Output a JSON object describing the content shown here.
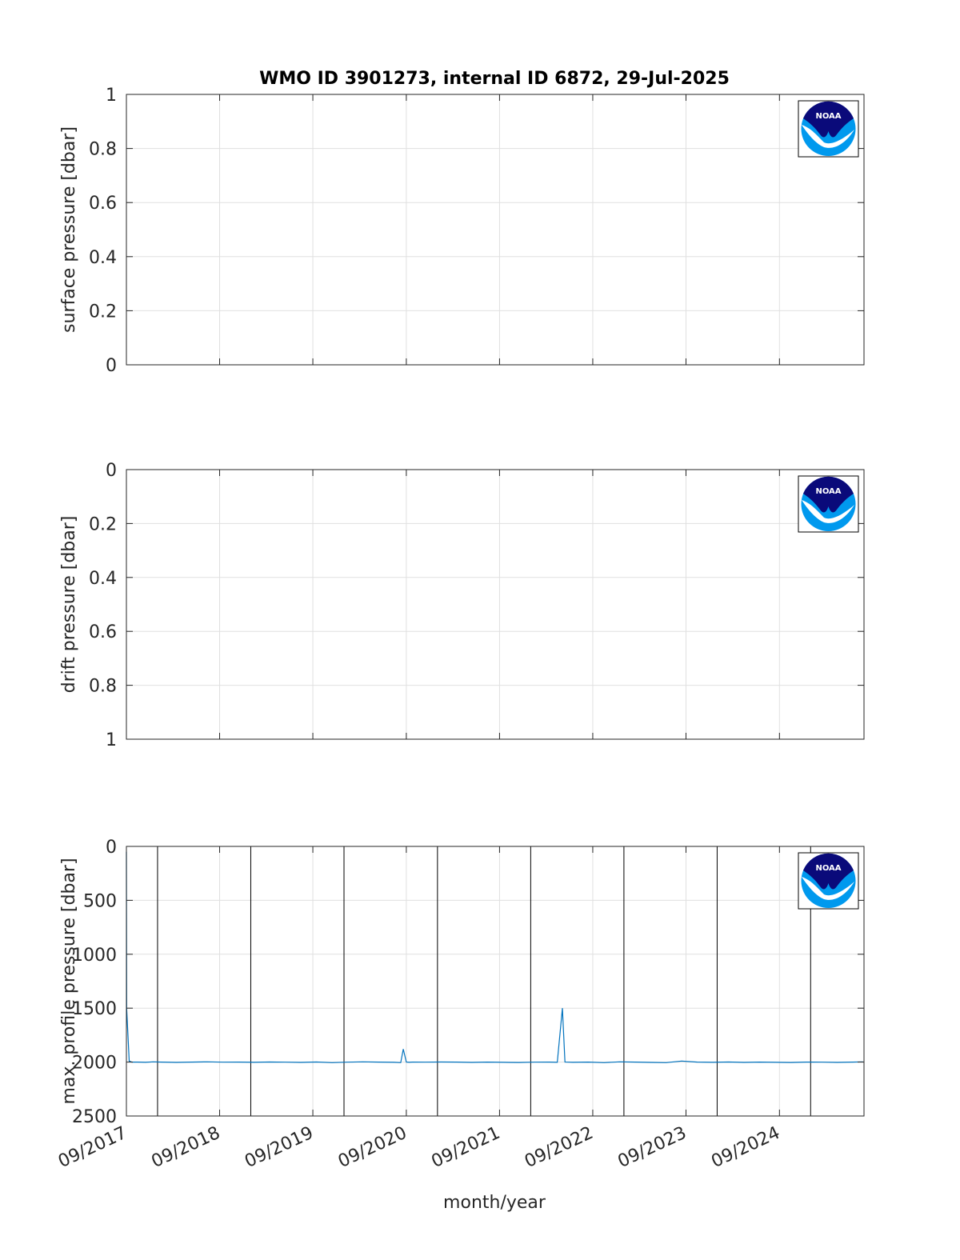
{
  "figure": {
    "title": "WMO ID 3901273, internal ID 6872, 29-Jul-2025",
    "xlabel": "month/year"
  },
  "logo": {
    "text": "NOAA",
    "icon": "noaa-logo-icon",
    "colors": {
      "navy": "#0a0a7a",
      "sky": "#0099ee",
      "white": "#ffffff"
    }
  },
  "colors": {
    "series": "#0072bd",
    "boundary": "#000000",
    "grid": "#e0e0e0",
    "axis": "#262626"
  },
  "chart_data": [
    {
      "type": "line",
      "ylabel": "surface pressure [dbar]",
      "ylim": [
        0,
        1
      ],
      "y_reversed": false,
      "yticks": [
        "0",
        "0.2",
        "0.4",
        "0.6",
        "0.8",
        "1"
      ],
      "ytick_values": [
        0,
        0.2,
        0.4,
        0.6,
        0.8,
        1
      ],
      "xlim": [
        "2017-09-01",
        "2025-07-29"
      ],
      "xticks": [
        "09/2017",
        "09/2018",
        "09/2019",
        "09/2020",
        "09/2021",
        "09/2022",
        "09/2023",
        "09/2024"
      ],
      "xtick_dates": [
        "2017-09-01",
        "2018-09-01",
        "2019-09-01",
        "2020-09-01",
        "2021-09-01",
        "2022-09-01",
        "2023-09-01",
        "2024-09-01"
      ],
      "grid": true,
      "series": []
    },
    {
      "type": "line",
      "ylabel": "drift pressure [dbar]",
      "ylim": [
        0,
        1
      ],
      "y_reversed": true,
      "yticks": [
        "0",
        "0.2",
        "0.4",
        "0.6",
        "0.8",
        "1"
      ],
      "ytick_values": [
        0,
        0.2,
        0.4,
        0.6,
        0.8,
        1
      ],
      "xlim": [
        "2017-09-01",
        "2025-07-29"
      ],
      "xticks": [
        "09/2017",
        "09/2018",
        "09/2019",
        "09/2020",
        "09/2021",
        "09/2022",
        "09/2023",
        "09/2024"
      ],
      "xtick_dates": [
        "2017-09-01",
        "2018-09-01",
        "2019-09-01",
        "2020-09-01",
        "2021-09-01",
        "2022-09-01",
        "2023-09-01",
        "2024-09-01"
      ],
      "grid": true,
      "series": []
    },
    {
      "type": "line",
      "ylabel": "max. profile pressure [dbar]",
      "ylim": [
        0,
        2500
      ],
      "y_reversed": true,
      "yticks": [
        "0",
        "500",
        "1000",
        "1500",
        "2000",
        "2500"
      ],
      "ytick_values": [
        0,
        500,
        1000,
        1500,
        2000,
        2500
      ],
      "xlim": [
        "2017-09-01",
        "2025-07-29"
      ],
      "xticks": [
        "09/2017",
        "09/2018",
        "09/2019",
        "09/2020",
        "09/2021",
        "09/2022",
        "09/2023",
        "09/2024"
      ],
      "xtick_dates": [
        "2017-09-01",
        "2018-09-01",
        "2019-09-01",
        "2020-09-01",
        "2021-09-01",
        "2022-09-01",
        "2023-09-01",
        "2024-09-01"
      ],
      "grid": true,
      "year_boundaries": [
        "2018-01-01",
        "2019-01-01",
        "2020-01-01",
        "2021-01-01",
        "2022-01-01",
        "2023-01-01",
        "2024-01-01",
        "2025-01-01"
      ],
      "series": [
        {
          "x": [
            "2017-09-01",
            "2017-09-02",
            "2017-09-12",
            "2017-09-22",
            "2017-10-15",
            "2017-11-15",
            "2017-12-15",
            "2018-01-15",
            "2018-03-15",
            "2018-05-15",
            "2018-07-15",
            "2018-09-15",
            "2018-11-15",
            "2019-01-15",
            "2019-03-15",
            "2019-05-15",
            "2019-07-15",
            "2019-09-15",
            "2019-11-15",
            "2020-01-15",
            "2020-03-15",
            "2020-05-15",
            "2020-07-15",
            "2020-08-10",
            "2020-08-20",
            "2020-09-01",
            "2020-09-12",
            "2020-09-25",
            "2020-11-15",
            "2021-01-15",
            "2021-03-15",
            "2021-05-15",
            "2021-07-15",
            "2021-09-15",
            "2021-11-15",
            "2022-01-15",
            "2022-03-15",
            "2022-04-15",
            "2022-05-05",
            "2022-05-15",
            "2022-05-25",
            "2022-06-15",
            "2022-08-15",
            "2022-10-15",
            "2022-12-15",
            "2023-02-15",
            "2023-04-15",
            "2023-06-15",
            "2023-08-15",
            "2023-10-15",
            "2023-12-15",
            "2024-02-15",
            "2024-04-15",
            "2024-06-15",
            "2024-08-15",
            "2024-10-15",
            "2024-12-15",
            "2025-02-15",
            "2025-04-15",
            "2025-06-15",
            "2025-07-25"
          ],
          "y": [
            50,
            1500,
            1990,
            2000,
            2000,
            2002,
            1998,
            2000,
            2003,
            2000,
            1998,
            2001,
            2000,
            2002,
            1999,
            2001,
            2003,
            1999,
            2005,
            2001,
            1998,
            2000,
            2002,
            2005,
            1880,
            2000,
            2002,
            2000,
            2001,
            1999,
            2000,
            2003,
            2000,
            2002,
            2004,
            2001,
            2000,
            2002,
            1500,
            2000,
            2001,
            2002,
            2000,
            2005,
            1998,
            2000,
            2003,
            2005,
            1990,
            2000,
            2002,
            1999,
            2003,
            2000,
            2002,
            2004,
            2000,
            2001,
            2003,
            2000,
            1998
          ]
        }
      ]
    }
  ]
}
